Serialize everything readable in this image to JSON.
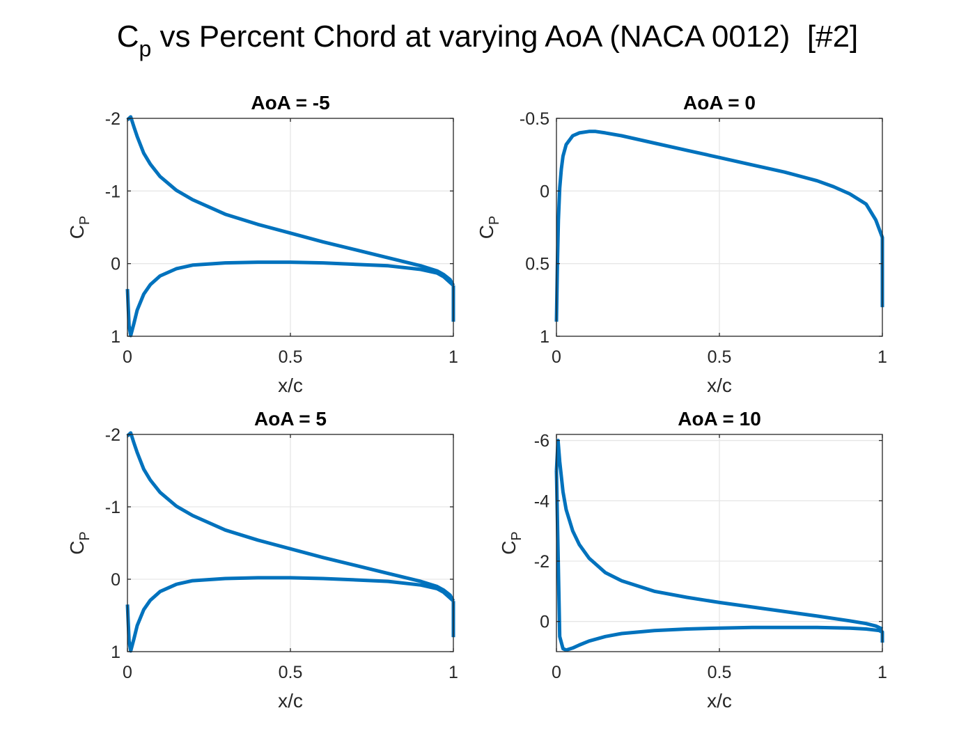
{
  "figure": {
    "title_main": "C",
    "title_sub": "p",
    "title_rest": " vs Percent Chord at varying AoA (NACA 0012)  [#2]"
  },
  "colors": {
    "line": "#0072BD",
    "grid": "#e6e6e6",
    "axes": "#262626"
  },
  "chart_data": [
    {
      "type": "line",
      "title": "AoA = -5",
      "xlabel": "x/c",
      "ylabel_main": "C",
      "ylabel_sub": "P",
      "xlim": [
        0,
        1
      ],
      "ylim": [
        -2,
        1
      ],
      "y_reversed": true,
      "xticks": [
        0,
        0.5,
        1
      ],
      "xtick_labels": [
        "0",
        "0.5",
        "1"
      ],
      "yticks": [
        -2,
        -1,
        0,
        1
      ],
      "ytick_labels": [
        "-2",
        "-1",
        "0",
        "1"
      ],
      "grid": true,
      "series": [
        {
          "x": [
            1.0,
            0.99,
            0.97,
            0.95,
            0.9,
            0.8,
            0.7,
            0.6,
            0.5,
            0.4,
            0.3,
            0.2,
            0.15,
            0.1,
            0.07,
            0.05,
            0.03,
            0.02,
            0.01,
            0.0
          ],
          "y": [
            0.3,
            0.22,
            0.15,
            0.1,
            0.03,
            -0.08,
            -0.19,
            -0.3,
            -0.42,
            -0.54,
            -0.68,
            -0.88,
            -1.01,
            -1.2,
            -1.37,
            -1.52,
            -1.75,
            -1.88,
            -2.02,
            -1.98
          ]
        },
        {
          "x": [
            0.0,
            0.005,
            0.01,
            0.02,
            0.03,
            0.05,
            0.07,
            0.1,
            0.15,
            0.2,
            0.3,
            0.4,
            0.5,
            0.6,
            0.7,
            0.8,
            0.9,
            0.95,
            0.97,
            0.99,
            1.0
          ],
          "y": [
            0.35,
            0.85,
            0.99,
            0.82,
            0.64,
            0.42,
            0.29,
            0.17,
            0.07,
            0.02,
            -0.01,
            -0.02,
            -0.02,
            -0.01,
            0.01,
            0.03,
            0.08,
            0.13,
            0.18,
            0.26,
            0.3
          ]
        },
        {
          "x": [
            1.0,
            1.0
          ],
          "y": [
            0.3,
            0.8
          ]
        }
      ]
    },
    {
      "type": "line",
      "title": "AoA = 0",
      "xlabel": "x/c",
      "ylabel_main": "C",
      "ylabel_sub": "P",
      "xlim": [
        0,
        1
      ],
      "ylim": [
        -0.5,
        1
      ],
      "y_reversed": true,
      "xticks": [
        0,
        0.5,
        1
      ],
      "xtick_labels": [
        "0",
        "0.5",
        "1"
      ],
      "yticks": [
        -0.5,
        0,
        0.5,
        1
      ],
      "ytick_labels": [
        "-0.5",
        "0",
        "0.5",
        "1"
      ],
      "grid": true,
      "series": [
        {
          "x": [
            0.0,
            0.003,
            0.006,
            0.01,
            0.015,
            0.02,
            0.03,
            0.05,
            0.07,
            0.1,
            0.12,
            0.15,
            0.2,
            0.3,
            0.4,
            0.5,
            0.6,
            0.7,
            0.8,
            0.85,
            0.9,
            0.95,
            0.98,
            0.99,
            1.0,
            1.0
          ],
          "y": [
            0.9,
            0.5,
            0.2,
            -0.02,
            -0.15,
            -0.24,
            -0.32,
            -0.38,
            -0.4,
            -0.41,
            -0.41,
            -0.4,
            -0.38,
            -0.33,
            -0.28,
            -0.23,
            -0.18,
            -0.13,
            -0.07,
            -0.03,
            0.02,
            0.09,
            0.2,
            0.26,
            0.32,
            0.8
          ]
        }
      ]
    },
    {
      "type": "line",
      "title": "AoA = 5",
      "xlabel": "x/c",
      "ylabel_main": "C",
      "ylabel_sub": "P",
      "xlim": [
        0,
        1
      ],
      "ylim": [
        -2,
        1
      ],
      "y_reversed": true,
      "xticks": [
        0,
        0.5,
        1
      ],
      "xtick_labels": [
        "0",
        "0.5",
        "1"
      ],
      "yticks": [
        -2,
        -1,
        0,
        1
      ],
      "ytick_labels": [
        "-2",
        "-1",
        "0",
        "1"
      ],
      "grid": true,
      "series": [
        {
          "x": [
            1.0,
            0.99,
            0.97,
            0.95,
            0.9,
            0.8,
            0.7,
            0.6,
            0.5,
            0.4,
            0.3,
            0.2,
            0.15,
            0.1,
            0.07,
            0.05,
            0.03,
            0.02,
            0.01,
            0.0
          ],
          "y": [
            0.3,
            0.22,
            0.15,
            0.1,
            0.03,
            -0.08,
            -0.19,
            -0.3,
            -0.42,
            -0.54,
            -0.68,
            -0.88,
            -1.01,
            -1.2,
            -1.37,
            -1.52,
            -1.75,
            -1.88,
            -2.02,
            -1.98
          ]
        },
        {
          "x": [
            0.0,
            0.005,
            0.01,
            0.02,
            0.03,
            0.05,
            0.07,
            0.1,
            0.15,
            0.2,
            0.3,
            0.4,
            0.5,
            0.6,
            0.7,
            0.8,
            0.9,
            0.95,
            0.97,
            0.99,
            1.0
          ],
          "y": [
            0.35,
            0.85,
            0.99,
            0.82,
            0.64,
            0.42,
            0.29,
            0.17,
            0.07,
            0.02,
            -0.01,
            -0.02,
            -0.02,
            -0.01,
            0.01,
            0.03,
            0.08,
            0.13,
            0.18,
            0.26,
            0.3
          ]
        },
        {
          "x": [
            1.0,
            1.0
          ],
          "y": [
            0.3,
            0.8
          ]
        }
      ]
    },
    {
      "type": "line",
      "title": "AoA = 10",
      "xlabel": "x/c",
      "ylabel_main": "C",
      "ylabel_sub": "P",
      "xlim": [
        0,
        1
      ],
      "ylim": [
        -6.2,
        1
      ],
      "y_reversed": true,
      "xticks": [
        0,
        0.5,
        1
      ],
      "xtick_labels": [
        "0",
        "0.5",
        "1"
      ],
      "yticks": [
        -6,
        -4,
        -2,
        0
      ],
      "ytick_labels": [
        "-6",
        "-4",
        "-2",
        "0"
      ],
      "grid": true,
      "series": [
        {
          "x": [
            1.0,
            0.98,
            0.95,
            0.9,
            0.8,
            0.7,
            0.6,
            0.5,
            0.4,
            0.3,
            0.2,
            0.15,
            0.1,
            0.07,
            0.05,
            0.03,
            0.02,
            0.01,
            0.005,
            0.0
          ],
          "y": [
            0.25,
            0.15,
            0.07,
            -0.02,
            -0.18,
            -0.33,
            -0.48,
            -0.63,
            -0.8,
            -1.0,
            -1.35,
            -1.62,
            -2.1,
            -2.55,
            -3.0,
            -3.7,
            -4.3,
            -5.3,
            -6.0,
            -5.0
          ]
        },
        {
          "x": [
            0.0,
            0.01,
            0.02,
            0.03,
            0.05,
            0.07,
            0.1,
            0.15,
            0.2,
            0.3,
            0.4,
            0.5,
            0.6,
            0.7,
            0.8,
            0.9,
            0.95,
            0.99,
            1.0,
            1.0
          ],
          "y": [
            -5.0,
            0.5,
            0.9,
            0.95,
            0.88,
            0.78,
            0.65,
            0.5,
            0.4,
            0.3,
            0.25,
            0.22,
            0.2,
            0.2,
            0.2,
            0.22,
            0.25,
            0.3,
            0.35,
            0.7
          ]
        }
      ]
    }
  ]
}
